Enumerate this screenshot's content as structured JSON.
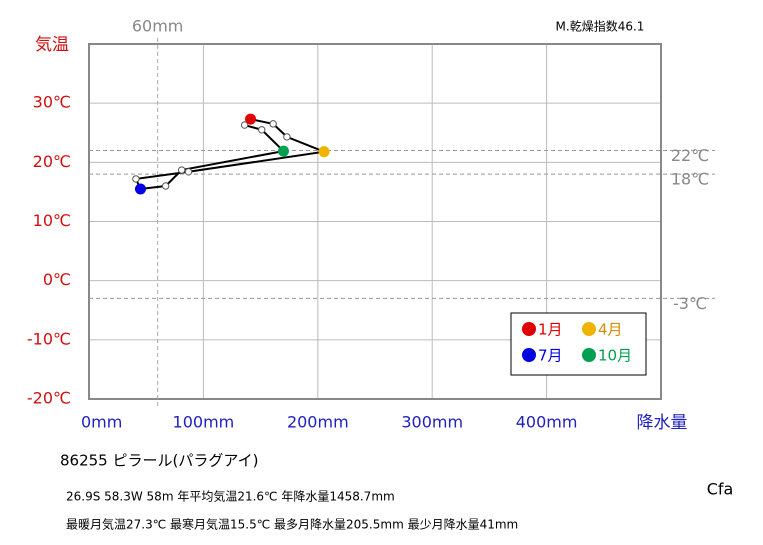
{
  "chart_data": {
    "type": "climograph",
    "index_label": "M.乾燥指数46.1",
    "y_title": "気温",
    "x_title": "降水量",
    "x": [
      141.2,
      161,
      173,
      205.5,
      87,
      41,
      45,
      67,
      81,
      170,
      151,
      136
    ],
    "values": [
      27.3,
      26.5,
      24.3,
      21.8,
      18.4,
      17.2,
      15.5,
      16.0,
      18.7,
      21.9,
      25.5,
      26.3
    ],
    "marker_colors": [
      "#e00000",
      null,
      null,
      "#f0b400",
      null,
      null,
      "#0000e0",
      null,
      null,
      "#00a050",
      null,
      null
    ],
    "line_color": "#000000",
    "xlim": [
      0,
      500
    ],
    "ylim": [
      -20,
      40
    ],
    "xticks": [
      {
        "value": 0,
        "label": "0mm"
      },
      {
        "value": 100,
        "label": "100mm"
      },
      {
        "value": 200,
        "label": "200mm"
      },
      {
        "value": 300,
        "label": "300mm"
      },
      {
        "value": 400,
        "label": "400mm"
      }
    ],
    "yticks": [
      {
        "value": -20,
        "label": "-20℃"
      },
      {
        "value": -10,
        "label": "-10℃"
      },
      {
        "value": 0,
        "label": "0℃"
      },
      {
        "value": 10,
        "label": "10℃"
      },
      {
        "value": 20,
        "label": "20℃"
      },
      {
        "value": 30,
        "label": "30℃"
      }
    ],
    "ref_lines_x": [
      {
        "value": 60,
        "label": "60mm"
      }
    ],
    "ref_lines_y": [
      {
        "value": 22,
        "label": "22℃"
      },
      {
        "value": 18,
        "label": "18℃"
      },
      {
        "value": -3,
        "label": "-3℃"
      }
    ],
    "grid": true,
    "legend": [
      {
        "name": "1月",
        "color": "#e00000"
      },
      {
        "name": "4月",
        "color": "#f0b400"
      },
      {
        "name": "7月",
        "color": "#0000e0"
      },
      {
        "name": "10月",
        "color": "#00a050"
      }
    ],
    "station": "86255  ピラール(パラグアイ)",
    "info_lines": [
      "26.9S  58.3W 58m  年平均気温21.6℃ 年降水量1458.7mm",
      "最暖月気温27.3℃ 最寒月気温15.5℃ 最多月降水量205.5mm 最少月降水量41mm"
    ],
    "climate_class": "Cfa"
  }
}
